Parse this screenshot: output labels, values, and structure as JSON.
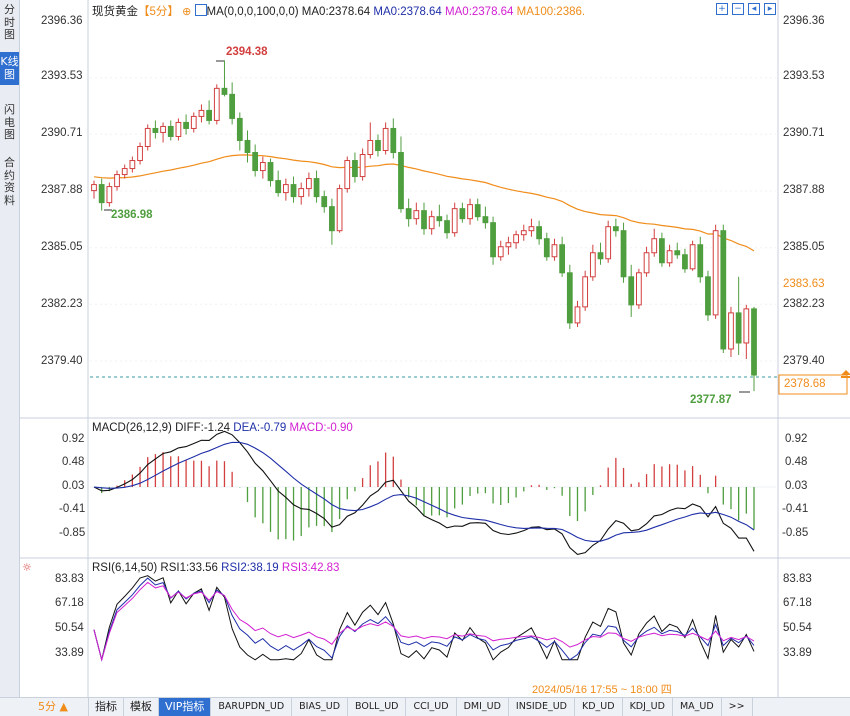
{
  "sidebar": {
    "tabs": [
      {
        "label": "分时图",
        "active": false
      },
      {
        "label": "K线图",
        "active": true
      },
      {
        "label": "闪电图",
        "active": false
      },
      {
        "label": "合约资料",
        "active": false
      }
    ]
  },
  "header": {
    "symbol": "现货黄金",
    "period": "【5分】",
    "settings_icon": "gear-icon",
    "ma_label": "MA(0,0,0,100,0,0)",
    "ma0_a": "MA0:2378.64",
    "ma0_b": "MA0:2378.64",
    "ma0_c": "MA0:2378.64",
    "ma100": "MA100:2386.",
    "toolbar_icons": [
      "zoom-in-icon",
      "zoom-out-icon",
      "scroll-left-icon",
      "scroll-right-icon"
    ]
  },
  "price_axis": {
    "labels": [
      "2396.36",
      "2393.53",
      "2390.71",
      "2387.88",
      "2385.05",
      "2382.23",
      "2379.40"
    ],
    "current_price": "2378.68",
    "highlight_price": "2383.63",
    "high_label": "2394.38",
    "low_left_label": "2386.98",
    "low_label": "2377.87"
  },
  "macd": {
    "title": "MACD(26,12,9)",
    "diff": "DIFF:-1.24",
    "dea": "DEA:-0.79",
    "macd": "MACD:-0.90",
    "labels": [
      "0.92",
      "0.48",
      "0.03",
      "-0.41",
      "-0.85"
    ]
  },
  "rsi": {
    "title": "RSI(6,14,50)",
    "rsi1": "RSI1:33.56",
    "rsi2": "RSI2:38.19",
    "rsi3": "RSI3:42.83",
    "labels": [
      "83.83",
      "67.18",
      "50.54",
      "33.89"
    ]
  },
  "timestamp": "2024/05/16 17:55 ~ 18:00 四",
  "bottom_tabs": [
    "5分 ▲",
    "指标",
    "模板",
    "VIP指标",
    "BARUPDN_UD",
    "BIAS_UD",
    "BOLL_UD",
    "CCI_UD",
    "DMI_UD",
    "INSIDE_UD",
    "KD_UD",
    "KDJ_UD",
    "MA_UD",
    ">>"
  ],
  "colors": {
    "up": "#d33f3f",
    "down": "#4f9e3f",
    "ma100": "#f08c1a",
    "dea": "#1f2fa8",
    "macd_label": "#d21fd2",
    "accent": "#2f6fd0"
  },
  "chart_data": {
    "type": "candlestick",
    "ylim": [
      2377.0,
      2397.0
    ],
    "candles": [
      [
        2387.9,
        2388.4,
        2387.5,
        2388.2
      ],
      [
        2388.2,
        2388.5,
        2386.9,
        2387.3
      ],
      [
        2387.3,
        2388.3,
        2387.1,
        2388.1
      ],
      [
        2388.1,
        2388.9,
        2387.9,
        2388.7
      ],
      [
        2388.7,
        2389.2,
        2388.5,
        2389.0
      ],
      [
        2389.0,
        2389.6,
        2388.8,
        2389.4
      ],
      [
        2389.4,
        2390.3,
        2389.2,
        2390.1
      ],
      [
        2390.1,
        2391.2,
        2389.9,
        2391.0
      ],
      [
        2391.0,
        2391.4,
        2390.5,
        2390.8
      ],
      [
        2390.8,
        2391.3,
        2390.3,
        2391.1
      ],
      [
        2391.1,
        2391.4,
        2390.4,
        2390.6
      ],
      [
        2390.6,
        2391.5,
        2390.4,
        2391.3
      ],
      [
        2391.3,
        2391.7,
        2390.7,
        2391.0
      ],
      [
        2391.0,
        2391.8,
        2390.8,
        2391.6
      ],
      [
        2391.6,
        2392.2,
        2391.3,
        2391.9
      ],
      [
        2391.9,
        2392.4,
        2391.2,
        2391.4
      ],
      [
        2391.4,
        2393.2,
        2391.2,
        2393.0
      ],
      [
        2393.0,
        2394.4,
        2392.6,
        2392.7
      ],
      [
        2392.7,
        2393.3,
        2391.2,
        2391.5
      ],
      [
        2391.5,
        2391.8,
        2389.9,
        2390.4
      ],
      [
        2390.4,
        2390.9,
        2389.3,
        2389.8
      ],
      [
        2389.8,
        2390.2,
        2388.6,
        2388.9
      ],
      [
        2388.9,
        2389.6,
        2388.5,
        2389.3
      ],
      [
        2389.3,
        2389.5,
        2388.1,
        2388.4
      ],
      [
        2388.4,
        2388.9,
        2387.6,
        2387.8
      ],
      [
        2387.8,
        2388.5,
        2387.4,
        2388.2
      ],
      [
        2388.2,
        2388.6,
        2387.3,
        2387.6
      ],
      [
        2387.6,
        2388.3,
        2387.2,
        2388.0
      ],
      [
        2388.0,
        2388.8,
        2387.6,
        2388.5
      ],
      [
        2388.5,
        2388.9,
        2387.3,
        2387.6
      ],
      [
        2387.6,
        2387.9,
        2386.8,
        2387.1
      ],
      [
        2387.1,
        2387.5,
        2385.2,
        2385.9
      ],
      [
        2385.9,
        2388.2,
        2385.8,
        2388.0
      ],
      [
        2388.0,
        2389.6,
        2387.8,
        2389.4
      ],
      [
        2389.4,
        2389.8,
        2388.3,
        2388.6
      ],
      [
        2388.6,
        2390.0,
        2388.4,
        2389.7
      ],
      [
        2389.7,
        2391.3,
        2389.5,
        2390.4
      ],
      [
        2390.4,
        2390.7,
        2389.6,
        2389.9
      ],
      [
        2389.9,
        2391.3,
        2389.7,
        2391.0
      ],
      [
        2391.0,
        2391.5,
        2389.5,
        2389.8
      ],
      [
        2389.8,
        2390.6,
        2386.8,
        2387.0
      ],
      [
        2387.0,
        2387.5,
        2386.1,
        2386.5
      ],
      [
        2386.5,
        2387.3,
        2386.2,
        2386.9
      ],
      [
        2386.9,
        2387.3,
        2385.7,
        2386.0
      ],
      [
        2386.0,
        2386.9,
        2385.7,
        2386.6
      ],
      [
        2386.6,
        2387.2,
        2386.1,
        2386.4
      ],
      [
        2386.4,
        2386.7,
        2385.5,
        2385.8
      ],
      [
        2385.8,
        2387.3,
        2385.6,
        2387.0
      ],
      [
        2387.0,
        2387.3,
        2386.3,
        2386.5
      ],
      [
        2386.5,
        2387.5,
        2386.2,
        2387.2
      ],
      [
        2387.2,
        2387.5,
        2386.4,
        2386.6
      ],
      [
        2386.6,
        2387.1,
        2386.0,
        2386.3
      ],
      [
        2386.3,
        2386.6,
        2384.2,
        2384.6
      ],
      [
        2384.6,
        2385.4,
        2384.4,
        2385.1
      ],
      [
        2385.1,
        2385.6,
        2384.7,
        2385.3
      ],
      [
        2385.3,
        2385.9,
        2385.0,
        2385.7
      ],
      [
        2385.7,
        2386.2,
        2385.4,
        2385.9
      ],
      [
        2385.9,
        2386.5,
        2385.6,
        2386.1
      ],
      [
        2386.1,
        2386.4,
        2385.2,
        2385.5
      ],
      [
        2385.5,
        2385.8,
        2384.4,
        2384.6
      ],
      [
        2384.6,
        2385.5,
        2384.4,
        2385.2
      ],
      [
        2385.2,
        2385.6,
        2383.6,
        2383.8
      ],
      [
        2383.8,
        2384.2,
        2381.0,
        2381.3
      ],
      [
        2381.3,
        2382.4,
        2381.1,
        2382.1
      ],
      [
        2382.1,
        2383.9,
        2381.9,
        2383.6
      ],
      [
        2383.6,
        2385.2,
        2383.4,
        2384.8
      ],
      [
        2384.8,
        2385.3,
        2384.2,
        2384.5
      ],
      [
        2384.5,
        2386.4,
        2384.3,
        2386.1
      ],
      [
        2386.1,
        2386.5,
        2385.6,
        2385.9
      ],
      [
        2385.9,
        2386.3,
        2383.3,
        2383.6
      ],
      [
        2383.6,
        2384.2,
        2381.6,
        2382.2
      ],
      [
        2382.2,
        2384.0,
        2382.0,
        2383.8
      ],
      [
        2383.8,
        2385.1,
        2383.6,
        2384.8
      ],
      [
        2384.8,
        2386.0,
        2384.6,
        2385.5
      ],
      [
        2385.5,
        2385.8,
        2384.1,
        2384.3
      ],
      [
        2384.3,
        2385.2,
        2384.1,
        2384.9
      ],
      [
        2384.9,
        2385.3,
        2384.5,
        2384.7
      ],
      [
        2384.7,
        2385.0,
        2383.8,
        2384.0
      ],
      [
        2384.0,
        2385.4,
        2383.9,
        2385.2
      ],
      [
        2385.2,
        2385.6,
        2383.3,
        2383.6
      ],
      [
        2383.6,
        2383.9,
        2381.4,
        2381.7
      ],
      [
        2381.7,
        2386.2,
        2381.5,
        2385.9
      ],
      [
        2385.9,
        2386.2,
        2379.8,
        2380.0
      ],
      [
        2380.0,
        2382.1,
        2379.6,
        2381.8
      ],
      [
        2381.8,
        2383.6,
        2379.7,
        2380.3
      ],
      [
        2380.3,
        2382.2,
        2379.5,
        2382.0
      ],
      [
        2382.0,
        2382.1,
        2377.9,
        2378.7
      ]
    ]
  }
}
